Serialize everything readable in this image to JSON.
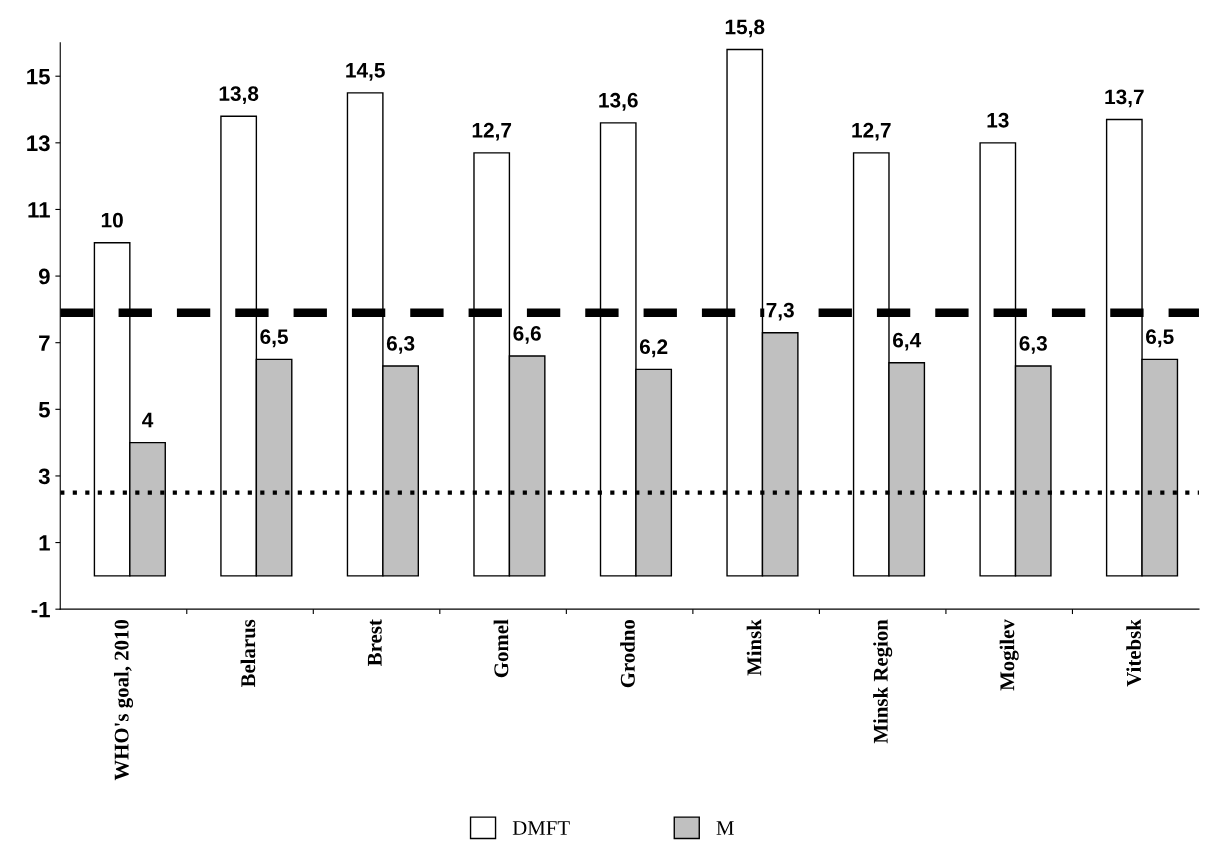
{
  "chart_data": {
    "type": "bar",
    "categories": [
      "WHO's goal, 2010",
      "Belarus",
      "Brest",
      "Gomel",
      "Grodno",
      "Minsk",
      "Minsk Region",
      "Mogilev",
      "Vitebsk"
    ],
    "series": [
      {
        "name": "DMFT",
        "color": "#ffffff",
        "values": [
          10,
          13.8,
          14.5,
          12.7,
          13.6,
          15.8,
          12.7,
          13,
          13.7
        ],
        "value_labels": [
          "10",
          "13,8",
          "14,5",
          "12,7",
          "13,6",
          "15,8",
          "12,7",
          "13",
          "13,7"
        ]
      },
      {
        "name": "M",
        "color": "#c0c0c0",
        "values": [
          4,
          6.5,
          6.3,
          6.6,
          6.2,
          7.3,
          6.4,
          6.3,
          6.5
        ],
        "value_labels": [
          "4",
          "6,5",
          "6,3",
          "6,6",
          "6,2",
          "7,3",
          "6,4",
          "6,3",
          "6,5"
        ]
      }
    ],
    "ylim": [
      -1,
      16
    ],
    "yticks": [
      -1,
      1,
      3,
      5,
      7,
      9,
      11,
      13,
      15
    ],
    "ref_lines": [
      {
        "axis": "y",
        "value": 7.9,
        "color": "#000000",
        "line_style": "dashed"
      },
      {
        "axis": "y",
        "value": 2.5,
        "color": "#000000",
        "line_style": "dotted"
      }
    ],
    "legend": "bottom",
    "grid": false
  }
}
